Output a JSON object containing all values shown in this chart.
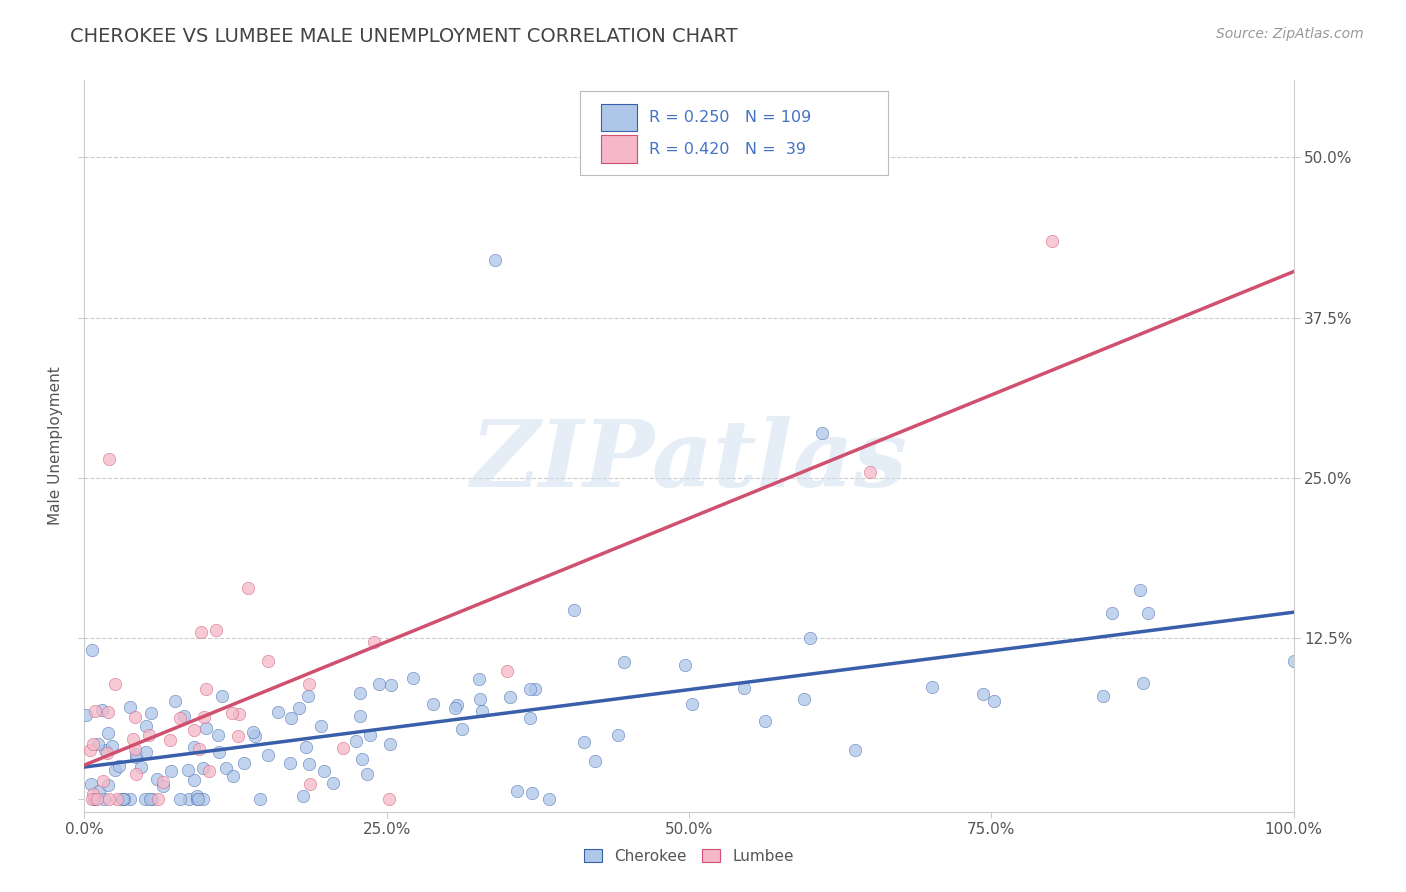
{
  "title": "CHEROKEE VS LUMBEE MALE UNEMPLOYMENT CORRELATION CHART",
  "source": "Source: ZipAtlas.com",
  "ylabel": "Male Unemployment",
  "watermark": "ZIPatlas",
  "cherokee_R": 0.25,
  "cherokee_N": 109,
  "lumbee_R": 0.42,
  "lumbee_N": 39,
  "xlim": [
    0.0,
    1.0
  ],
  "ylim": [
    -0.01,
    0.56
  ],
  "yticks": [
    0.0,
    0.125,
    0.25,
    0.375,
    0.5
  ],
  "ytick_labels": [
    "",
    "12.5%",
    "25.0%",
    "37.5%",
    "50.0%"
  ],
  "xticks": [
    0.0,
    0.25,
    0.5,
    0.75,
    1.0
  ],
  "xtick_labels": [
    "0.0%",
    "25.0%",
    "50.0%",
    "75.0%",
    "100.0%"
  ],
  "cherokee_color": "#aec6e8",
  "lumbee_color": "#f4b8c8",
  "cherokee_line_color": "#3a5faa",
  "lumbee_line_color": "#d05070",
  "background_color": "#ffffff",
  "grid_color": "#cccccc",
  "text_color": "#4472c4",
  "title_color": "#444444",
  "title_fontsize": 14,
  "source_fontsize": 10,
  "legend_text_color": "#4472c4"
}
